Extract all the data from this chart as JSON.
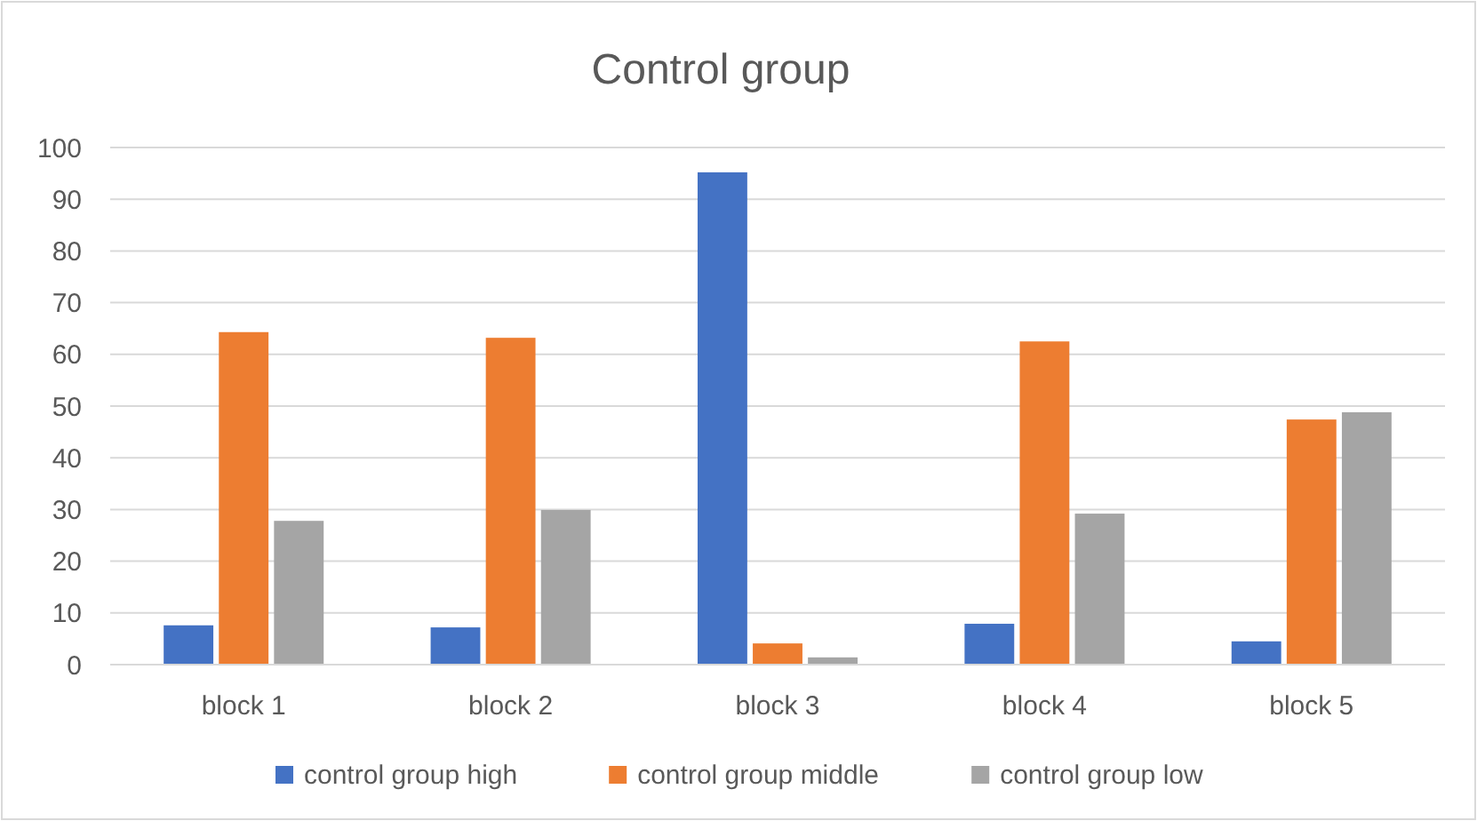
{
  "chart_data": {
    "type": "bar",
    "title": "Control group",
    "categories": [
      "block 1",
      "block 2",
      "block 3",
      "block 4",
      "block 5"
    ],
    "series": [
      {
        "name": "control group high",
        "color": "#4472c4",
        "values": [
          7.6,
          7.2,
          95.2,
          7.9,
          4.5
        ]
      },
      {
        "name": "control group middle",
        "color": "#ed7d31",
        "values": [
          64.3,
          63.2,
          4.1,
          62.5,
          47.4
        ]
      },
      {
        "name": "control group low",
        "color": "#a5a5a5",
        "values": [
          27.8,
          29.9,
          1.4,
          29.2,
          48.8
        ]
      }
    ],
    "ylim": [
      0,
      100
    ],
    "yticks": [
      0,
      10,
      20,
      30,
      40,
      50,
      60,
      70,
      80,
      90,
      100
    ],
    "grid": "y",
    "legend": "bottom"
  }
}
